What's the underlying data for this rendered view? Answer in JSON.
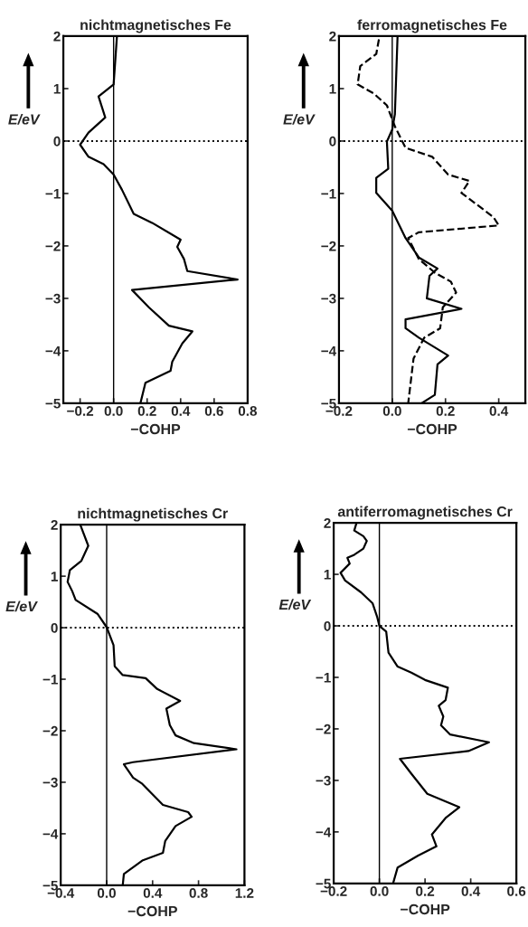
{
  "chart_data": [
    {
      "type": "line",
      "title": "nichtmagnetisches Fe",
      "xlabel": "−COHP",
      "ylabel": "E/eV",
      "xlim": [
        -0.3,
        0.8
      ],
      "ylim": [
        -5,
        2
      ],
      "xticks": [
        {
          "value": -0.2,
          "label": "−0.2"
        },
        {
          "value": 0.0,
          "label": "0.0"
        },
        {
          "value": 0.2,
          "label": "0.2"
        },
        {
          "value": 0.4,
          "label": "0.4"
        },
        {
          "value": 0.6,
          "label": "0.6"
        },
        {
          "value": 0.8,
          "label": "0.8"
        }
      ],
      "yticks": [
        {
          "value": -5,
          "label": "−5"
        },
        {
          "value": -4,
          "label": "−4"
        },
        {
          "value": -3,
          "label": "−3"
        },
        {
          "value": -2,
          "label": "−2"
        },
        {
          "value": -1,
          "label": "−1"
        },
        0,
        1,
        2
      ],
      "grid": false,
      "ref_lines": [
        {
          "axis": "y",
          "value": 0,
          "line_style": "dotted",
          "color": "#000000"
        },
        {
          "axis": "x",
          "value": 0,
          "line_style": "solid",
          "color": "#000000"
        }
      ],
      "series": [
        {
          "color": "#000000",
          "line_style": "solid",
          "x": [
            0.02,
            0.0,
            -0.09,
            -0.05,
            -0.15,
            -0.2,
            -0.15,
            -0.06,
            0.0,
            0.05,
            0.12,
            0.23,
            0.4,
            0.38,
            0.42,
            0.44,
            0.74,
            0.11,
            0.21,
            0.33,
            0.47,
            0.41,
            0.35,
            0.34,
            0.19,
            0.16
          ],
          "values": [
            2.0,
            1.08,
            0.85,
            0.45,
            0.16,
            -0.07,
            -0.3,
            -0.44,
            -0.64,
            -0.93,
            -1.39,
            -1.56,
            -1.88,
            -2.02,
            -2.25,
            -2.48,
            -2.64,
            -2.84,
            -3.17,
            -3.52,
            -3.63,
            -3.86,
            -4.21,
            -4.38,
            -4.61,
            -5.0
          ]
        }
      ]
    },
    {
      "type": "line",
      "title": "ferromagnetisches Fe",
      "xlabel": "−COHP",
      "ylabel": "E/eV",
      "xlim": [
        -0.2,
        0.5
      ],
      "ylim": [
        -5,
        2
      ],
      "xticks": [
        {
          "value": -0.2,
          "label": "−0.2"
        },
        {
          "value": 0.0,
          "label": "0.0"
        },
        {
          "value": 0.2,
          "label": "0.2"
        },
        {
          "value": 0.4,
          "label": "0.4"
        }
      ],
      "yticks": [
        {
          "value": -5,
          "label": "−5"
        },
        {
          "value": -4,
          "label": "−4"
        },
        {
          "value": -3,
          "label": "−3"
        },
        {
          "value": -2,
          "label": "−2"
        },
        {
          "value": -1,
          "label": "−1"
        },
        0,
        1,
        2
      ],
      "grid": false,
      "ref_lines": [
        {
          "axis": "y",
          "value": 0,
          "line_style": "dotted",
          "color": "#000000"
        },
        {
          "axis": "x",
          "value": 0,
          "line_style": "solid",
          "color": "#000000"
        }
      ],
      "series": [
        {
          "color": "#000000",
          "line_style": "solid",
          "x": [
            0.02,
            0.01,
            0.0,
            -0.02,
            -0.015,
            -0.06,
            -0.06,
            0.0,
            0.05,
            0.1,
            0.17,
            0.14,
            0.13,
            0.26,
            0.05,
            0.05,
            0.1,
            0.21,
            0.17,
            0.16,
            0.11
          ],
          "values": [
            2.0,
            0.51,
            0.22,
            -0.01,
            -0.53,
            -0.7,
            -0.99,
            -1.33,
            -1.85,
            -2.22,
            -2.43,
            -2.57,
            -3.0,
            -3.2,
            -3.4,
            -3.57,
            -3.75,
            -4.09,
            -4.26,
            -4.84,
            -5.0
          ]
        },
        {
          "color": "#000000",
          "line_style": "dashed",
          "x": [
            -0.05,
            -0.06,
            -0.12,
            -0.13,
            -0.07,
            -0.02,
            0.01,
            0.05,
            0.15,
            0.21,
            0.29,
            0.26,
            0.38,
            0.4,
            0.1,
            0.06,
            0.1,
            0.16,
            0.22,
            0.24,
            0.19,
            0.18,
            0.12,
            0.08,
            0.06
          ],
          "values": [
            1.94,
            1.66,
            1.43,
            1.08,
            0.91,
            0.68,
            0.28,
            -0.13,
            -0.3,
            -0.64,
            -0.76,
            -0.99,
            -1.45,
            -1.61,
            -1.74,
            -1.85,
            -2.25,
            -2.51,
            -2.68,
            -2.89,
            -3.17,
            -3.57,
            -3.75,
            -4.15,
            -5.0
          ]
        }
      ]
    },
    {
      "type": "line",
      "title": "nichtmagnetisches Cr",
      "xlabel": "−COHP",
      "ylabel": "E/eV",
      "xlim": [
        -0.4,
        1.2
      ],
      "ylim": [
        -5,
        2
      ],
      "xticks": [
        {
          "value": -0.4,
          "label": "−0.4"
        },
        {
          "value": 0.0,
          "label": "0.0"
        },
        {
          "value": 0.4,
          "label": "0.4"
        },
        {
          "value": 0.8,
          "label": "0.8"
        },
        {
          "value": 1.2,
          "label": "1.2"
        }
      ],
      "yticks": [
        {
          "value": -5,
          "label": "−5"
        },
        {
          "value": -4,
          "label": "−4"
        },
        {
          "value": -3,
          "label": "−3"
        },
        {
          "value": -2,
          "label": "−2"
        },
        {
          "value": -1,
          "label": "−1"
        },
        0,
        1,
        2
      ],
      "grid": false,
      "ref_lines": [
        {
          "axis": "y",
          "value": 0,
          "line_style": "dotted",
          "color": "#000000"
        },
        {
          "axis": "x",
          "value": 0,
          "line_style": "solid",
          "color": "#000000"
        }
      ],
      "series": [
        {
          "color": "#000000",
          "line_style": "solid",
          "x": [
            -0.23,
            -0.16,
            -0.22,
            -0.32,
            -0.34,
            -0.3,
            -0.27,
            -0.08,
            0.0,
            0.06,
            0.07,
            0.14,
            0.34,
            0.44,
            0.64,
            0.52,
            0.55,
            0.6,
            0.76,
            1.13,
            0.23,
            0.15,
            0.23,
            0.31,
            0.49,
            0.71,
            0.74,
            0.6,
            0.51,
            0.49,
            0.31,
            0.15,
            0.14
          ],
          "values": [
            2.0,
            1.59,
            1.3,
            1.12,
            0.89,
            0.71,
            0.54,
            0.27,
            0.01,
            -0.34,
            -0.75,
            -0.92,
            -0.98,
            -1.19,
            -1.42,
            -1.57,
            -1.89,
            -2.09,
            -2.24,
            -2.36,
            -2.61,
            -2.65,
            -2.91,
            -3.03,
            -3.44,
            -3.58,
            -3.67,
            -3.85,
            -4.14,
            -4.37,
            -4.52,
            -4.78,
            -5.0
          ]
        }
      ]
    },
    {
      "type": "line",
      "title": "antiferromagnetisches Cr",
      "xlabel": "−COHP",
      "ylabel": "E/eV",
      "xlim": [
        -0.2,
        0.6
      ],
      "ylim": [
        -5,
        2
      ],
      "xticks": [
        {
          "value": -0.2,
          "label": "−0.2"
        },
        {
          "value": 0.0,
          "label": "0.0"
        },
        {
          "value": 0.2,
          "label": "0.2"
        },
        {
          "value": 0.4,
          "label": "0.4"
        },
        {
          "value": 0.6,
          "label": "0.6"
        }
      ],
      "yticks": [
        {
          "value": -5,
          "label": "−5"
        },
        {
          "value": -4,
          "label": "−4"
        },
        {
          "value": -3,
          "label": "−3"
        },
        {
          "value": -2,
          "label": "−2"
        },
        {
          "value": -1,
          "label": "−1"
        },
        0,
        1,
        2
      ],
      "grid": false,
      "ref_lines": [
        {
          "axis": "y",
          "value": 0,
          "line_style": "dotted",
          "color": "#000000"
        },
        {
          "axis": "x",
          "value": 0,
          "line_style": "solid",
          "color": "#000000"
        }
      ],
      "series": [
        {
          "color": "#000000",
          "line_style": "solid",
          "x": [
            -0.1,
            -0.11,
            -0.07,
            -0.055,
            -0.07,
            -0.11,
            -0.14,
            -0.13,
            -0.17,
            -0.15,
            -0.08,
            -0.03,
            -0.01,
            0.0,
            0.03,
            0.04,
            0.08,
            0.14,
            0.2,
            0.3,
            0.29,
            0.26,
            0.28,
            0.27,
            0.31,
            0.48,
            0.39,
            0.09,
            0.14,
            0.21,
            0.35,
            0.29,
            0.23,
            0.25,
            0.17,
            0.08,
            0.06
          ],
          "values": [
            2.0,
            1.85,
            1.74,
            1.65,
            1.5,
            1.38,
            1.32,
            1.21,
            1.03,
            0.88,
            0.65,
            0.44,
            0.18,
            0.0,
            -0.11,
            -0.52,
            -0.79,
            -0.91,
            -1.05,
            -1.2,
            -1.44,
            -1.55,
            -1.76,
            -1.93,
            -2.11,
            -2.26,
            -2.43,
            -2.58,
            -2.87,
            -3.26,
            -3.52,
            -3.73,
            -4.05,
            -4.28,
            -4.46,
            -4.69,
            -5.0
          ]
        }
      ]
    }
  ]
}
